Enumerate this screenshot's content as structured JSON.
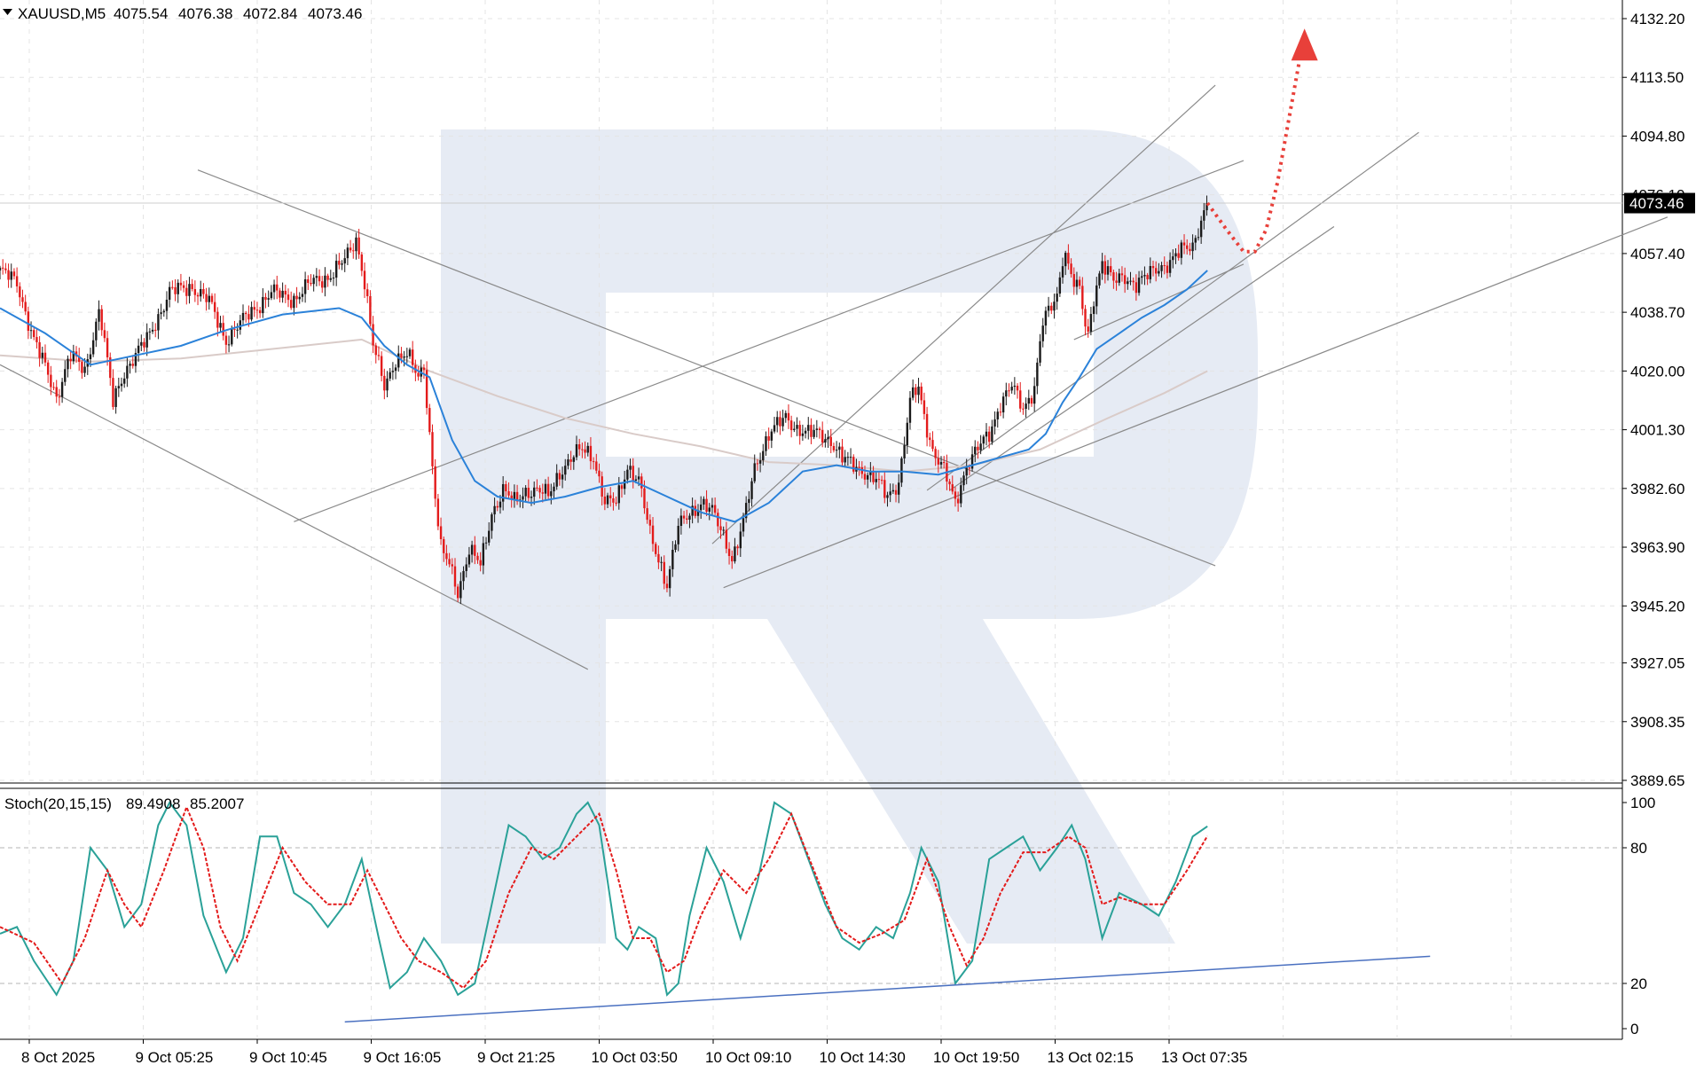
{
  "chart_data": [
    {
      "type": "candlestick",
      "symbol": "XAUUSD,M5",
      "ohlc": [
        "4075.54",
        "4076.38",
        "4072.84",
        "4073.46"
      ],
      "current_price": "4073.46",
      "y_axis_ticks": [
        "4132.20",
        "4113.50",
        "4094.80",
        "4076.10",
        "4057.40",
        "4038.70",
        "4020.00",
        "4001.30",
        "3982.60",
        "3963.90",
        "3945.20",
        "3927.05",
        "3908.35",
        "3889.65"
      ],
      "x_axis_ticks": [
        "8 Oct 2025",
        "9 Oct 05:25",
        "9 Oct 10:45",
        "9 Oct 16:05",
        "9 Oct 21:25",
        "10 Oct 03:50",
        "10 Oct 09:10",
        "10 Oct 14:30",
        "10 Oct 19:50",
        "13 Oct 02:15",
        "13 Oct 07:35"
      ],
      "ylim": [
        3889.65,
        4132.2
      ],
      "price_path": [
        [
          0,
          4052
        ],
        [
          15,
          4048
        ],
        [
          30,
          4030
        ],
        [
          50,
          4012
        ],
        [
          62,
          4025
        ],
        [
          75,
          4020
        ],
        [
          88,
          4040
        ],
        [
          100,
          4010
        ],
        [
          110,
          4020
        ],
        [
          130,
          4030
        ],
        [
          150,
          4045
        ],
        [
          170,
          4047
        ],
        [
          185,
          4042
        ],
        [
          200,
          4030
        ],
        [
          220,
          4038
        ],
        [
          240,
          4045
        ],
        [
          260,
          4043
        ],
        [
          275,
          4048
        ],
        [
          290,
          4050
        ],
        [
          305,
          4055
        ],
        [
          315,
          4062
        ],
        [
          322,
          4050
        ],
        [
          330,
          4028
        ],
        [
          340,
          4015
        ],
        [
          350,
          4024
        ],
        [
          360,
          4025
        ],
        [
          370,
          4018
        ],
        [
          375,
          4022
        ],
        [
          380,
          4000
        ],
        [
          385,
          3980
        ],
        [
          390,
          3963
        ],
        [
          398,
          3958
        ],
        [
          405,
          3950
        ],
        [
          415,
          3963
        ],
        [
          425,
          3958
        ],
        [
          435,
          3975
        ],
        [
          445,
          3982
        ],
        [
          455,
          3978
        ],
        [
          465,
          3982
        ],
        [
          475,
          3982
        ],
        [
          485,
          3980
        ],
        [
          495,
          3988
        ],
        [
          505,
          3992
        ],
        [
          515,
          3995
        ],
        [
          525,
          3993
        ],
        [
          535,
          3978
        ],
        [
          545,
          3978
        ],
        [
          555,
          3990
        ],
        [
          565,
          3985
        ],
        [
          575,
          3968
        ],
        [
          585,
          3958
        ],
        [
          590,
          3952
        ],
        [
          600,
          3970
        ],
        [
          610,
          3975
        ],
        [
          620,
          3978
        ],
        [
          630,
          3975
        ],
        [
          640,
          3968
        ],
        [
          648,
          3960
        ],
        [
          658,
          3972
        ],
        [
          668,
          3990
        ],
        [
          680,
          4000
        ],
        [
          695,
          4005
        ],
        [
          705,
          4002
        ],
        [
          715,
          4000
        ],
        [
          725,
          4000
        ],
        [
          735,
          3998
        ],
        [
          745,
          3992
        ],
        [
          755,
          3990
        ],
        [
          765,
          3988
        ],
        [
          775,
          3985
        ],
        [
          785,
          3980
        ],
        [
          795,
          3985
        ],
        [
          805,
          4010
        ],
        [
          812,
          4015
        ],
        [
          818,
          4005
        ],
        [
          825,
          3995
        ],
        [
          835,
          3988
        ],
        [
          845,
          3978
        ],
        [
          855,
          3990
        ],
        [
          865,
          3995
        ],
        [
          875,
          4000
        ],
        [
          885,
          4010
        ],
        [
          895,
          4015
        ],
        [
          905,
          4008
        ],
        [
          915,
          4015
        ],
        [
          922,
          4035
        ],
        [
          930,
          4040
        ],
        [
          936,
          4045
        ],
        [
          941,
          4060
        ],
        [
          948,
          4050
        ],
        [
          955,
          4045
        ],
        [
          962,
          4030
        ],
        [
          968,
          4045
        ],
        [
          975,
          4055
        ],
        [
          985,
          4048
        ],
        [
          995,
          4050
        ],
        [
          1005,
          4048
        ],
        [
          1015,
          4050
        ],
        [
          1025,
          4053
        ],
        [
          1035,
          4055
        ],
        [
          1045,
          4058
        ],
        [
          1055,
          4060
        ],
        [
          1062,
          4068
        ],
        [
          1068,
          4073.46
        ]
      ],
      "blue_ma_path": [
        [
          0,
          4040
        ],
        [
          40,
          4032
        ],
        [
          80,
          4022
        ],
        [
          120,
          4025
        ],
        [
          160,
          4028
        ],
        [
          200,
          4033
        ],
        [
          250,
          4038
        ],
        [
          300,
          4040
        ],
        [
          320,
          4037
        ],
        [
          340,
          4028
        ],
        [
          360,
          4022
        ],
        [
          380,
          4018
        ],
        [
          400,
          3998
        ],
        [
          420,
          3985
        ],
        [
          440,
          3980
        ],
        [
          470,
          3978
        ],
        [
          500,
          3980
        ],
        [
          530,
          3983
        ],
        [
          560,
          3985
        ],
        [
          590,
          3980
        ],
        [
          620,
          3975
        ],
        [
          650,
          3972
        ],
        [
          680,
          3978
        ],
        [
          710,
          3988
        ],
        [
          740,
          3990
        ],
        [
          770,
          3988
        ],
        [
          800,
          3988
        ],
        [
          830,
          3987
        ],
        [
          860,
          3990
        ],
        [
          890,
          3993
        ],
        [
          910,
          3995
        ],
        [
          925,
          4000
        ],
        [
          940,
          4010
        ],
        [
          955,
          4018
        ],
        [
          970,
          4027
        ],
        [
          990,
          4032
        ],
        [
          1010,
          4037
        ],
        [
          1030,
          4041
        ],
        [
          1050,
          4046
        ],
        [
          1068,
          4052
        ]
      ],
      "slow_ma_path": [
        [
          0,
          4025
        ],
        [
          80,
          4023
        ],
        [
          160,
          4024
        ],
        [
          240,
          4027
        ],
        [
          320,
          4030
        ],
        [
          380,
          4020
        ],
        [
          440,
          4012
        ],
        [
          500,
          4005
        ],
        [
          560,
          4000
        ],
        [
          620,
          3996
        ],
        [
          680,
          3991
        ],
        [
          740,
          3990
        ],
        [
          800,
          3988
        ],
        [
          860,
          3990
        ],
        [
          920,
          3995
        ],
        [
          980,
          4005
        ],
        [
          1030,
          4013
        ],
        [
          1068,
          4020
        ]
      ],
      "forecast_path": [
        [
          1068,
          4073.46
        ],
        [
          1085,
          4065
        ],
        [
          1100,
          4058
        ],
        [
          1110,
          4058
        ],
        [
          1120,
          4065
        ],
        [
          1130,
          4080
        ],
        [
          1140,
          4100
        ],
        [
          1150,
          4120
        ]
      ],
      "channel_lines": [
        [
          [
            175,
            4084
          ],
          [
            1075,
            3958
          ]
        ],
        [
          [
            0,
            4022
          ],
          [
            520,
            3925
          ]
        ],
        [
          [
            260,
            3972
          ],
          [
            1100,
            4087
          ]
        ],
        [
          [
            640,
            3951
          ],
          [
            1475,
            4069
          ]
        ],
        [
          [
            820,
            3982
          ],
          [
            1255,
            4096
          ]
        ],
        [
          [
            840,
            3982
          ],
          [
            1180,
            4066
          ]
        ],
        [
          [
            950,
            4030
          ],
          [
            1100,
            4054
          ]
        ],
        [
          [
            630,
            3965
          ],
          [
            1075,
            4111
          ]
        ]
      ]
    },
    {
      "type": "line",
      "indicator": "Stoch(20,15,15)",
      "values": [
        "89.4908",
        "85.2007"
      ],
      "y_axis_ticks": [
        "100",
        "80",
        "20",
        "0"
      ],
      "ylim": [
        0,
        100
      ],
      "levels": [
        80,
        20
      ],
      "main_line": [
        [
          0,
          42
        ],
        [
          15,
          45
        ],
        [
          30,
          30
        ],
        [
          50,
          15
        ],
        [
          65,
          30
        ],
        [
          80,
          80
        ],
        [
          95,
          70
        ],
        [
          110,
          45
        ],
        [
          125,
          55
        ],
        [
          140,
          90
        ],
        [
          150,
          100
        ],
        [
          165,
          90
        ],
        [
          180,
          50
        ],
        [
          200,
          25
        ],
        [
          215,
          40
        ],
        [
          230,
          85
        ],
        [
          245,
          85
        ],
        [
          260,
          60
        ],
        [
          275,
          55
        ],
        [
          290,
          45
        ],
        [
          305,
          55
        ],
        [
          320,
          75
        ],
        [
          335,
          40
        ],
        [
          345,
          18
        ],
        [
          360,
          25
        ],
        [
          375,
          40
        ],
        [
          390,
          30
        ],
        [
          405,
          15
        ],
        [
          420,
          20
        ],
        [
          435,
          55
        ],
        [
          450,
          90
        ],
        [
          465,
          85
        ],
        [
          480,
          75
        ],
        [
          495,
          80
        ],
        [
          510,
          95
        ],
        [
          520,
          100
        ],
        [
          530,
          90
        ],
        [
          545,
          40
        ],
        [
          555,
          35
        ],
        [
          565,
          45
        ],
        [
          580,
          40
        ],
        [
          590,
          15
        ],
        [
          600,
          20
        ],
        [
          610,
          50
        ],
        [
          625,
          80
        ],
        [
          640,
          65
        ],
        [
          655,
          40
        ],
        [
          670,
          65
        ],
        [
          685,
          100
        ],
        [
          700,
          95
        ],
        [
          715,
          75
        ],
        [
          730,
          55
        ],
        [
          745,
          40
        ],
        [
          760,
          35
        ],
        [
          775,
          45
        ],
        [
          790,
          40
        ],
        [
          805,
          60
        ],
        [
          815,
          80
        ],
        [
          830,
          65
        ],
        [
          845,
          20
        ],
        [
          860,
          30
        ],
        [
          875,
          75
        ],
        [
          890,
          80
        ],
        [
          905,
          85
        ],
        [
          920,
          70
        ],
        [
          935,
          80
        ],
        [
          948,
          90
        ],
        [
          960,
          75
        ],
        [
          975,
          40
        ],
        [
          990,
          60
        ],
        [
          1010,
          55
        ],
        [
          1025,
          50
        ],
        [
          1040,
          65
        ],
        [
          1055,
          85
        ],
        [
          1068,
          89.49
        ]
      ],
      "signal_line": [
        [
          0,
          45
        ],
        [
          30,
          38
        ],
        [
          55,
          20
        ],
        [
          75,
          40
        ],
        [
          95,
          70
        ],
        [
          110,
          55
        ],
        [
          125,
          45
        ],
        [
          145,
          70
        ],
        [
          165,
          98
        ],
        [
          180,
          80
        ],
        [
          195,
          45
        ],
        [
          210,
          30
        ],
        [
          230,
          55
        ],
        [
          250,
          80
        ],
        [
          270,
          65
        ],
        [
          290,
          55
        ],
        [
          310,
          55
        ],
        [
          325,
          70
        ],
        [
          340,
          55
        ],
        [
          355,
          40
        ],
        [
          370,
          30
        ],
        [
          390,
          25
        ],
        [
          410,
          18
        ],
        [
          430,
          30
        ],
        [
          450,
          60
        ],
        [
          470,
          80
        ],
        [
          490,
          75
        ],
        [
          510,
          85
        ],
        [
          530,
          95
        ],
        [
          545,
          70
        ],
        [
          560,
          40
        ],
        [
          575,
          40
        ],
        [
          590,
          25
        ],
        [
          605,
          30
        ],
        [
          620,
          50
        ],
        [
          640,
          70
        ],
        [
          660,
          60
        ],
        [
          680,
          75
        ],
        [
          700,
          95
        ],
        [
          720,
          70
        ],
        [
          740,
          45
        ],
        [
          760,
          38
        ],
        [
          780,
          42
        ],
        [
          800,
          48
        ],
        [
          820,
          75
        ],
        [
          840,
          45
        ],
        [
          855,
          28
        ],
        [
          870,
          40
        ],
        [
          885,
          60
        ],
        [
          905,
          78
        ],
        [
          925,
          78
        ],
        [
          945,
          85
        ],
        [
          960,
          80
        ],
        [
          975,
          55
        ],
        [
          990,
          58
        ],
        [
          1010,
          55
        ],
        [
          1030,
          55
        ],
        [
          1050,
          70
        ],
        [
          1068,
          85.2
        ]
      ],
      "trend_line": [
        [
          305,
          3
        ],
        [
          1265,
          32
        ]
      ]
    }
  ],
  "colors": {
    "bull_candle": "#1a1a1a",
    "bear_candle": "#e31b1b",
    "fast_ma": "#2b82d9",
    "slow_ma": "#d9cbc8",
    "stoch_main": "#2aa198",
    "stoch_signal": "#e31b1b",
    "forecast": "#e8403a",
    "watermark": "#e6ebf4"
  }
}
